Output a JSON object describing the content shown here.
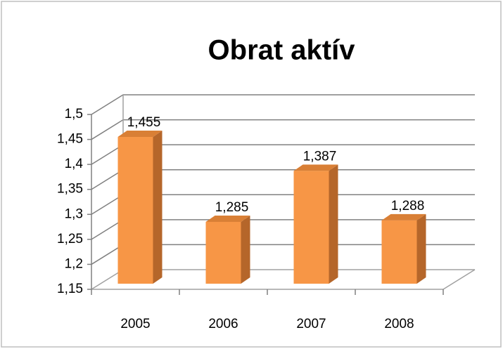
{
  "chart_data": {
    "type": "bar",
    "title": "Obrat aktív",
    "categories": [
      "2005",
      "2006",
      "2007",
      "2008"
    ],
    "values": [
      1.455,
      1.285,
      1.387,
      1.288
    ],
    "value_labels": [
      "1,455",
      "1,285",
      "1,387",
      "1,288"
    ],
    "color": "#f79646",
    "ylim": [
      1.15,
      1.5
    ],
    "yticks": [
      {
        "value": 1.15,
        "label": "1,15"
      },
      {
        "value": 1.2,
        "label": "1,2"
      },
      {
        "value": 1.25,
        "label": "1,25"
      },
      {
        "value": 1.3,
        "label": "1,3"
      },
      {
        "value": 1.35,
        "label": "1,35"
      },
      {
        "value": 1.4,
        "label": "1,4"
      },
      {
        "value": 1.45,
        "label": "1,45"
      },
      {
        "value": 1.5,
        "label": "1,5"
      }
    ],
    "grid": true
  }
}
